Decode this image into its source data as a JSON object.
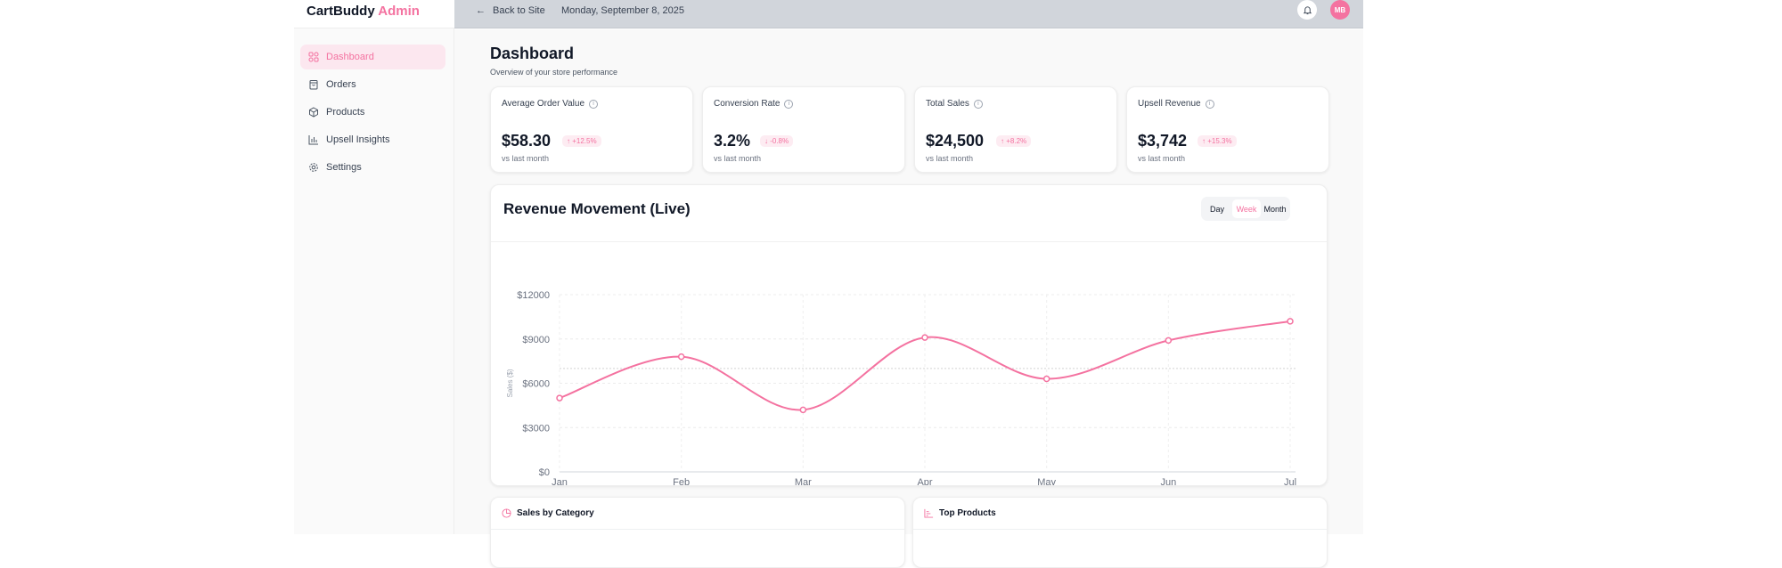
{
  "brand": {
    "name": "CartBuddy",
    "suffix": "Admin",
    "accent": "#f472a0"
  },
  "sidebar": {
    "items": [
      {
        "label": "Dashboard",
        "icon": "grid-icon",
        "active": true
      },
      {
        "label": "Orders",
        "icon": "shopping-bag-icon"
      },
      {
        "label": "Products",
        "icon": "box-icon"
      },
      {
        "label": "Upsell Insights",
        "icon": "bar-chart-icon"
      },
      {
        "label": "Settings",
        "icon": "gear-icon"
      }
    ]
  },
  "header": {
    "back_label": "Back to Site",
    "date": "Monday, September 8, 2025",
    "avatar_initials": "MB"
  },
  "page": {
    "title": "Dashboard",
    "subtitle": "Overview of your store performance"
  },
  "kpis": [
    {
      "label": "Average Order Value",
      "value": "$58.30",
      "change": "↑ +12.5%",
      "sub": "vs last month"
    },
    {
      "label": "Conversion Rate",
      "value": "3.2%",
      "change": "↓ -0.8%",
      "sub": "vs last month"
    },
    {
      "label": "Total Sales",
      "value": "$24,500",
      "change": "↑ +8.2%",
      "sub": "vs last month"
    },
    {
      "label": "Upsell Revenue",
      "value": "$3,742",
      "change": "↑ +15.3%",
      "sub": "vs last month"
    }
  ],
  "revenue": {
    "title": "Revenue Movement (Live)",
    "toggle": [
      "Day",
      "Week",
      "Month"
    ],
    "selected": "Week"
  },
  "chart_data": {
    "type": "line",
    "categories": [
      "Jan",
      "Feb",
      "Mar",
      "Apr",
      "May",
      "Jun",
      "Jul"
    ],
    "values": [
      5000,
      7800,
      4200,
      9100,
      6300,
      8900,
      10200
    ],
    "ylabel": "Sales ($)",
    "ylim": [
      0,
      12000
    ],
    "yticks": [
      "$0",
      "$3000",
      "$6000",
      "$9000",
      "$12000"
    ],
    "reference_line": 7000,
    "color": "#f472a0",
    "grid": true
  },
  "bottom_cards": [
    {
      "title": "Sales by Category",
      "icon": "pie-chart-icon"
    },
    {
      "title": "Top Products",
      "icon": "bar-chart-icon"
    }
  ]
}
